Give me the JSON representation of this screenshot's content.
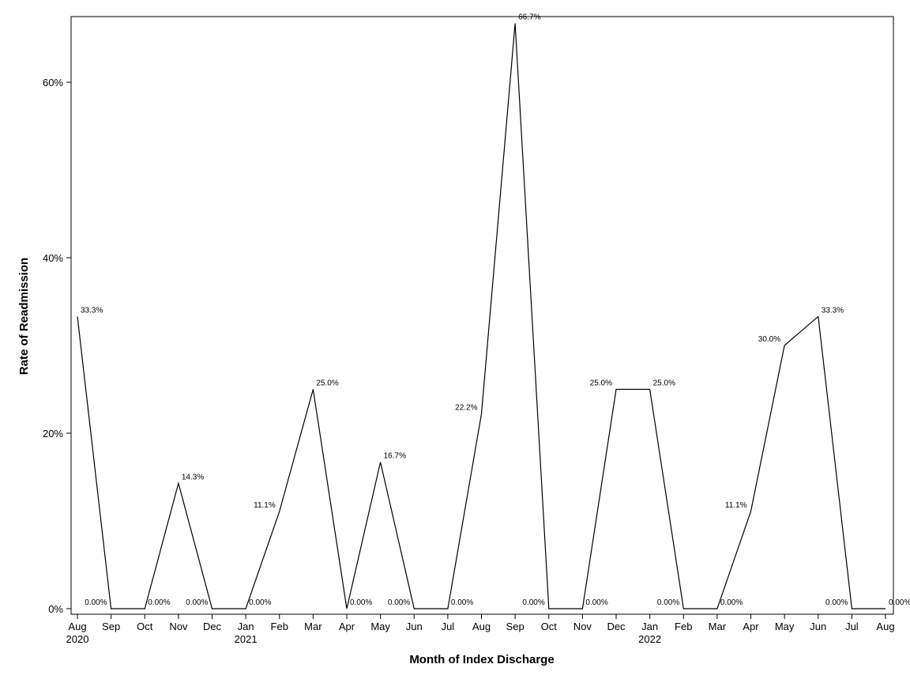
{
  "chart_data": {
    "type": "line",
    "title": "",
    "xlabel": "Month of Index Discharge",
    "ylabel": "Rate of Readmission",
    "ylim": [
      0,
      0.675
    ],
    "grid": false,
    "legend": "none",
    "line_color": "#000000",
    "y_ticks": [
      {
        "value": 0,
        "label": "0%"
      },
      {
        "value": 0.2,
        "label": "20%"
      },
      {
        "value": 0.4,
        "label": "40%"
      },
      {
        "value": 0.6,
        "label": "60%"
      }
    ],
    "points": [
      {
        "month": "Aug",
        "year": "2020",
        "value": 0.333,
        "label": "33.3%"
      },
      {
        "month": "Sep",
        "year": "",
        "value": 0.0,
        "label": "0.00%"
      },
      {
        "month": "Oct",
        "year": "",
        "value": 0.0,
        "label": "0.00%"
      },
      {
        "month": "Nov",
        "year": "",
        "value": 0.143,
        "label": "14.3%"
      },
      {
        "month": "Dec",
        "year": "",
        "value": 0.0,
        "label": "0.00%"
      },
      {
        "month": "Jan",
        "year": "2021",
        "value": 0.0,
        "label": "0.00%"
      },
      {
        "month": "Feb",
        "year": "",
        "value": 0.111,
        "label": "11.1%"
      },
      {
        "month": "Mar",
        "year": "",
        "value": 0.25,
        "label": "25.0%"
      },
      {
        "month": "Apr",
        "year": "",
        "value": 0.0,
        "label": "0.00%"
      },
      {
        "month": "May",
        "year": "",
        "value": 0.167,
        "label": "16.7%"
      },
      {
        "month": "Jun",
        "year": "",
        "value": 0.0,
        "label": "0.00%"
      },
      {
        "month": "Jul",
        "year": "",
        "value": 0.0,
        "label": "0.00%"
      },
      {
        "month": "Aug",
        "year": "",
        "value": 0.222,
        "label": "22.2%"
      },
      {
        "month": "Sep",
        "year": "",
        "value": 0.667,
        "label": "66.7%"
      },
      {
        "month": "Oct",
        "year": "",
        "value": 0.0,
        "label": "0.00%"
      },
      {
        "month": "Nov",
        "year": "",
        "value": 0.0,
        "label": "0.00%"
      },
      {
        "month": "Dec",
        "year": "",
        "value": 0.25,
        "label": "25.0%"
      },
      {
        "month": "Jan",
        "year": "2022",
        "value": 0.25,
        "label": "25.0%"
      },
      {
        "month": "Feb",
        "year": "",
        "value": 0.0,
        "label": "0.00%"
      },
      {
        "month": "Mar",
        "year": "",
        "value": 0.0,
        "label": "0.00%"
      },
      {
        "month": "Apr",
        "year": "",
        "value": 0.111,
        "label": "11.1%"
      },
      {
        "month": "May",
        "year": "",
        "value": 0.3,
        "label": "30.0%"
      },
      {
        "month": "Jun",
        "year": "",
        "value": 0.333,
        "label": "33.3%"
      },
      {
        "month": "Jul",
        "year": "",
        "value": 0.0,
        "label": "0.00%"
      },
      {
        "month": "Aug",
        "year": "",
        "value": 0.0,
        "label": "0.00%"
      }
    ]
  }
}
